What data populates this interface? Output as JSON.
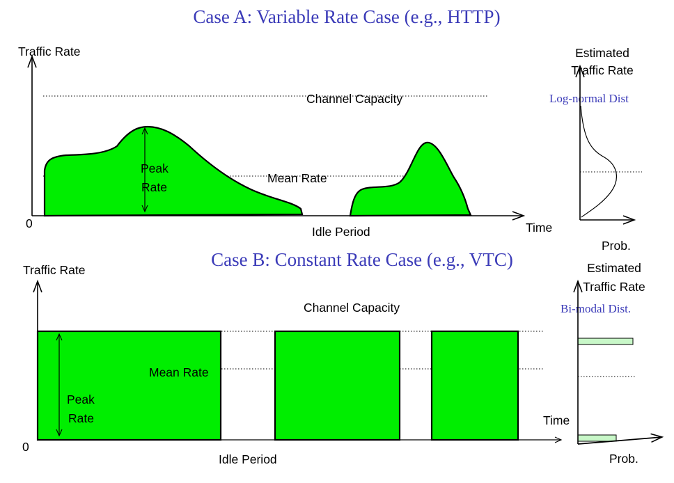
{
  "case_a": {
    "title": "Case A:  Variable Rate Case (e.g., HTTP)",
    "y_axis_label": "Traffic Rate",
    "origin_label": "0",
    "x_axis_label": "Time",
    "channel_capacity": "Channel Capacity",
    "mean_rate": "Mean Rate",
    "peak_rate_line1": "Peak",
    "peak_rate_line2": "Rate",
    "idle_period": "Idle Period",
    "dist_y_label_line1": "Estimated",
    "dist_y_label_line2": "Traffic Rate",
    "dist_name": "Log-normal Dist",
    "dist_x_label": "Prob."
  },
  "case_b": {
    "title": "Case B:  Constant Rate Case (e.g., VTC)",
    "y_axis_label": "Traffic Rate",
    "origin_label": "0",
    "x_axis_label": "Time",
    "channel_capacity": "Channel Capacity",
    "mean_rate": "Mean Rate",
    "peak_rate_line1": "Peak",
    "peak_rate_line2": "Rate",
    "idle_period": "Idle Period",
    "dist_y_label_line1": "Estimated",
    "dist_y_label_line2": "Traffic Rate",
    "dist_name": "Bi-modal Dist.",
    "dist_x_label": "Prob."
  },
  "colors": {
    "fill": "#00ee00",
    "title": "#3b3bb8",
    "line": "#000000"
  }
}
